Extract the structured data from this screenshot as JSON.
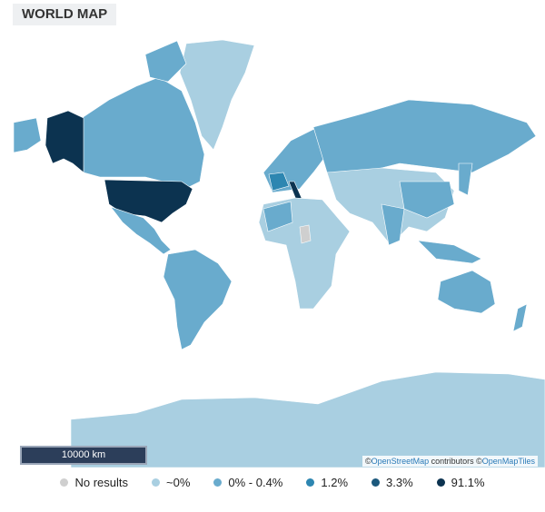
{
  "header": {
    "title": "WORLD MAP"
  },
  "map": {
    "scale_label": "10000 km",
    "attribution": [
      {
        "text": "©"
      },
      {
        "text": "OpenStreetMap",
        "link": true
      },
      {
        "text": " contributors ©"
      },
      {
        "text": "OpenMapTiles",
        "link": true
      }
    ]
  },
  "legend": {
    "items": [
      {
        "label": "No results",
        "color": "#cfcfcf"
      },
      {
        "label": "~0%",
        "color": "#a9cfe1"
      },
      {
        "label": "0% - 0.4%",
        "color": "#69abcd"
      },
      {
        "label": "1.2%",
        "color": "#2d86b1"
      },
      {
        "label": "3.3%",
        "color": "#1b587c"
      },
      {
        "label": "91.1%",
        "color": "#0c3350"
      }
    ]
  }
}
